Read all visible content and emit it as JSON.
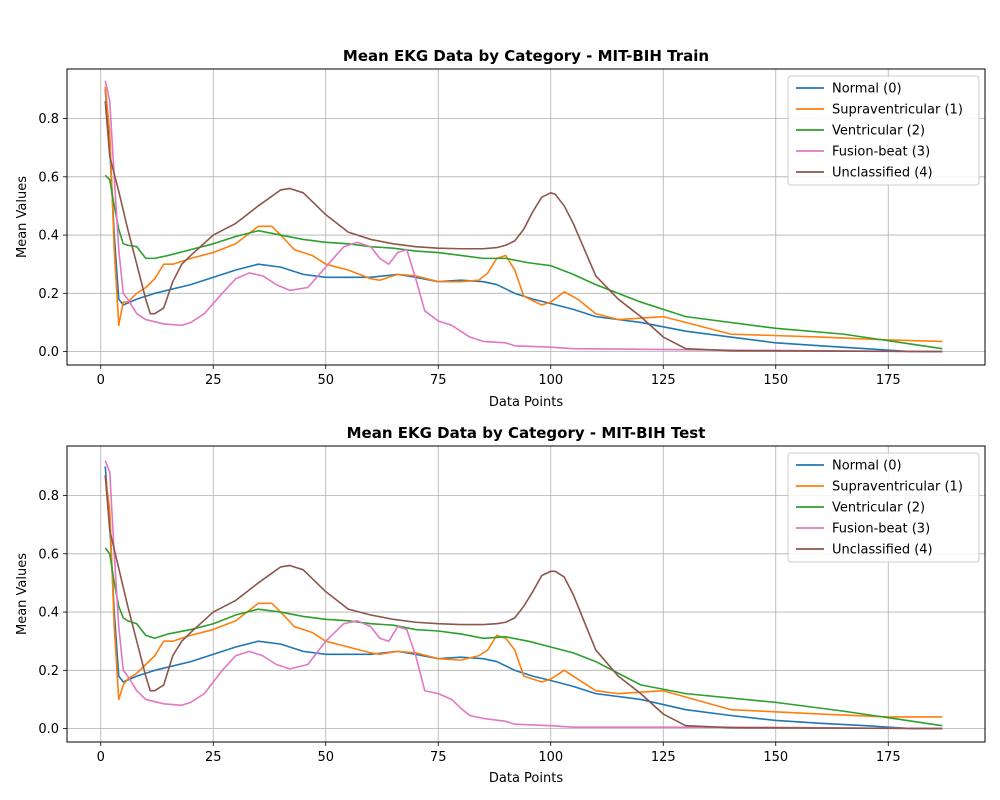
{
  "chart_data": [
    {
      "type": "line",
      "title": "Mean EKG Data by Category - MIT-BIH Train",
      "xlabel": "Data Points",
      "ylabel": "Mean Values",
      "xlim": [
        -7.5,
        196.5
      ],
      "ylim": [
        -0.046,
        0.97
      ],
      "xticks": [
        0,
        25,
        50,
        75,
        100,
        125,
        150,
        175
      ],
      "yticks": [
        0.0,
        0.2,
        0.4,
        0.6,
        0.8
      ],
      "grid": true,
      "legend": "top-right",
      "series": [
        {
          "name": "Normal (0)",
          "color": "#1f77b4",
          "x": [
            1,
            2,
            3,
            4,
            5,
            8,
            12,
            20,
            30,
            35,
            40,
            45,
            50,
            60,
            66,
            70,
            75,
            80,
            85,
            88,
            92,
            96,
            100,
            105,
            110,
            120,
            130,
            140,
            150,
            160,
            170,
            180,
            187
          ],
          "y": [
            0.9,
            0.7,
            0.4,
            0.18,
            0.16,
            0.18,
            0.2,
            0.23,
            0.28,
            0.3,
            0.29,
            0.265,
            0.255,
            0.255,
            0.265,
            0.255,
            0.24,
            0.245,
            0.24,
            0.23,
            0.2,
            0.18,
            0.165,
            0.145,
            0.12,
            0.1,
            0.07,
            0.05,
            0.03,
            0.02,
            0.01,
            0.0,
            0.0
          ]
        },
        {
          "name": "Supraventricular (1)",
          "color": "#ff7f0e",
          "x": [
            1,
            2,
            3,
            4,
            5,
            6,
            8,
            10,
            12,
            14,
            16,
            20,
            25,
            30,
            35,
            38,
            40,
            43,
            47,
            50,
            55,
            60,
            62,
            66,
            70,
            75,
            80,
            84,
            86,
            88,
            90,
            92,
            94,
            98,
            100,
            103,
            106,
            110,
            115,
            125,
            140,
            160,
            175,
            187
          ],
          "y": [
            0.91,
            0.75,
            0.35,
            0.09,
            0.17,
            0.17,
            0.2,
            0.22,
            0.25,
            0.3,
            0.3,
            0.32,
            0.34,
            0.37,
            0.43,
            0.43,
            0.4,
            0.35,
            0.33,
            0.3,
            0.28,
            0.25,
            0.245,
            0.265,
            0.26,
            0.24,
            0.24,
            0.245,
            0.27,
            0.32,
            0.33,
            0.28,
            0.19,
            0.16,
            0.17,
            0.205,
            0.18,
            0.13,
            0.11,
            0.12,
            0.06,
            0.05,
            0.04,
            0.035
          ]
        },
        {
          "name": "Ventricular (2)",
          "color": "#2ca02c",
          "x": [
            1,
            2,
            3,
            4,
            5,
            6,
            8,
            10,
            12,
            15,
            20,
            25,
            30,
            35,
            40,
            45,
            50,
            55,
            60,
            65,
            70,
            75,
            80,
            85,
            90,
            95,
            100,
            105,
            110,
            120,
            130,
            150,
            165,
            187
          ],
          "y": [
            0.605,
            0.59,
            0.5,
            0.42,
            0.37,
            0.365,
            0.36,
            0.32,
            0.32,
            0.33,
            0.35,
            0.37,
            0.395,
            0.415,
            0.4,
            0.385,
            0.375,
            0.37,
            0.36,
            0.355,
            0.345,
            0.34,
            0.33,
            0.32,
            0.32,
            0.305,
            0.295,
            0.265,
            0.23,
            0.17,
            0.12,
            0.08,
            0.06,
            0.01
          ]
        },
        {
          "name": "Fusion-beat (3)",
          "color": "#e377c2",
          "x": [
            1,
            2,
            3,
            4,
            5,
            6,
            8,
            10,
            14,
            18,
            20,
            23,
            27,
            30,
            33,
            36,
            39,
            42,
            46,
            50,
            54,
            57,
            60,
            62,
            64,
            66,
            68,
            70,
            72,
            75,
            78,
            80,
            82,
            85,
            90,
            92,
            100,
            105,
            120,
            140,
            187
          ],
          "y": [
            0.93,
            0.86,
            0.6,
            0.35,
            0.2,
            0.18,
            0.13,
            0.11,
            0.095,
            0.09,
            0.1,
            0.13,
            0.2,
            0.25,
            0.27,
            0.26,
            0.23,
            0.21,
            0.22,
            0.29,
            0.36,
            0.375,
            0.36,
            0.32,
            0.3,
            0.34,
            0.35,
            0.25,
            0.14,
            0.105,
            0.09,
            0.07,
            0.05,
            0.035,
            0.03,
            0.02,
            0.015,
            0.01,
            0.008,
            0.005,
            0.0
          ]
        },
        {
          "name": "Unclassified (4)",
          "color": "#8c564b",
          "x": [
            1,
            2,
            4,
            6,
            8,
            10,
            11,
            12,
            14,
            16,
            18,
            20,
            25,
            30,
            35,
            40,
            42,
            45,
            50,
            55,
            60,
            65,
            70,
            75,
            80,
            85,
            88,
            90,
            92,
            94,
            96,
            98,
            100,
            101,
            103,
            105,
            110,
            115,
            120,
            125,
            130,
            140,
            187
          ],
          "y": [
            0.86,
            0.67,
            0.55,
            0.42,
            0.3,
            0.18,
            0.13,
            0.13,
            0.15,
            0.24,
            0.3,
            0.33,
            0.4,
            0.44,
            0.5,
            0.555,
            0.56,
            0.545,
            0.47,
            0.41,
            0.385,
            0.37,
            0.36,
            0.355,
            0.353,
            0.353,
            0.357,
            0.365,
            0.38,
            0.42,
            0.48,
            0.53,
            0.545,
            0.54,
            0.5,
            0.44,
            0.26,
            0.18,
            0.12,
            0.05,
            0.01,
            0.003,
            0.0
          ]
        }
      ]
    },
    {
      "type": "line",
      "title": "Mean EKG Data by Category - MIT-BIH Test",
      "xlabel": "Data Points",
      "ylabel": "Mean Values",
      "xlim": [
        -7.5,
        196.5
      ],
      "ylim": [
        -0.046,
        0.97
      ],
      "xticks": [
        0,
        25,
        50,
        75,
        100,
        125,
        150,
        175
      ],
      "yticks": [
        0.0,
        0.2,
        0.4,
        0.6,
        0.8
      ],
      "grid": true,
      "legend": "top-right",
      "series": [
        {
          "name": "Normal (0)",
          "color": "#1f77b4",
          "x": [
            1,
            2,
            3,
            4,
            5,
            8,
            12,
            20,
            30,
            35,
            40,
            45,
            50,
            60,
            66,
            70,
            75,
            80,
            85,
            88,
            92,
            96,
            100,
            105,
            110,
            120,
            130,
            140,
            150,
            160,
            170,
            180,
            187
          ],
          "y": [
            0.9,
            0.7,
            0.4,
            0.18,
            0.16,
            0.18,
            0.2,
            0.23,
            0.28,
            0.3,
            0.29,
            0.265,
            0.255,
            0.255,
            0.265,
            0.255,
            0.24,
            0.245,
            0.24,
            0.23,
            0.2,
            0.18,
            0.165,
            0.145,
            0.12,
            0.1,
            0.065,
            0.045,
            0.028,
            0.018,
            0.01,
            0.0,
            0.0
          ]
        },
        {
          "name": "Supraventricular (1)",
          "color": "#ff7f0e",
          "x": [
            1,
            2,
            3,
            4,
            5,
            6,
            8,
            10,
            12,
            14,
            16,
            20,
            25,
            30,
            35,
            38,
            40,
            43,
            47,
            50,
            55,
            60,
            62,
            66,
            70,
            75,
            80,
            84,
            86,
            88,
            90,
            92,
            94,
            98,
            100,
            103,
            106,
            110,
            115,
            125,
            140,
            160,
            175,
            187
          ],
          "y": [
            0.87,
            0.75,
            0.35,
            0.1,
            0.15,
            0.17,
            0.19,
            0.22,
            0.25,
            0.3,
            0.3,
            0.32,
            0.34,
            0.37,
            0.43,
            0.43,
            0.4,
            0.35,
            0.33,
            0.3,
            0.28,
            0.26,
            0.255,
            0.265,
            0.26,
            0.24,
            0.235,
            0.25,
            0.27,
            0.32,
            0.31,
            0.27,
            0.18,
            0.16,
            0.17,
            0.2,
            0.17,
            0.13,
            0.12,
            0.13,
            0.065,
            0.05,
            0.04,
            0.04
          ]
        },
        {
          "name": "Ventricular (2)",
          "color": "#2ca02c",
          "x": [
            1,
            2,
            3,
            4,
            5,
            6,
            8,
            10,
            12,
            15,
            20,
            25,
            30,
            35,
            40,
            45,
            50,
            55,
            60,
            65,
            70,
            75,
            80,
            85,
            90,
            95,
            100,
            105,
            110,
            120,
            130,
            150,
            165,
            187
          ],
          "y": [
            0.62,
            0.6,
            0.5,
            0.42,
            0.38,
            0.37,
            0.36,
            0.32,
            0.31,
            0.325,
            0.34,
            0.36,
            0.39,
            0.41,
            0.4,
            0.385,
            0.375,
            0.37,
            0.36,
            0.355,
            0.34,
            0.335,
            0.325,
            0.31,
            0.315,
            0.3,
            0.28,
            0.26,
            0.23,
            0.15,
            0.12,
            0.09,
            0.06,
            0.01
          ]
        },
        {
          "name": "Fusion-beat (3)",
          "color": "#e377c2",
          "x": [
            1,
            2,
            3,
            4,
            5,
            6,
            8,
            10,
            14,
            18,
            20,
            23,
            27,
            30,
            33,
            36,
            39,
            42,
            46,
            50,
            54,
            57,
            60,
            62,
            64,
            66,
            68,
            70,
            72,
            75,
            78,
            80,
            82,
            85,
            90,
            92,
            100,
            105,
            120,
            140,
            187
          ],
          "y": [
            0.92,
            0.88,
            0.6,
            0.35,
            0.2,
            0.18,
            0.13,
            0.1,
            0.085,
            0.08,
            0.09,
            0.12,
            0.2,
            0.25,
            0.265,
            0.25,
            0.22,
            0.205,
            0.22,
            0.3,
            0.36,
            0.37,
            0.35,
            0.31,
            0.3,
            0.35,
            0.34,
            0.25,
            0.13,
            0.12,
            0.1,
            0.07,
            0.045,
            0.035,
            0.025,
            0.015,
            0.01,
            0.005,
            0.005,
            0.005,
            0.0
          ]
        },
        {
          "name": "Unclassified (4)",
          "color": "#8c564b",
          "x": [
            1,
            2,
            4,
            6,
            8,
            10,
            11,
            12,
            14,
            16,
            18,
            20,
            25,
            30,
            35,
            40,
            42,
            45,
            50,
            55,
            60,
            65,
            70,
            75,
            80,
            85,
            88,
            90,
            92,
            94,
            96,
            98,
            100,
            101,
            103,
            105,
            110,
            115,
            120,
            125,
            130,
            140,
            187
          ],
          "y": [
            0.87,
            0.68,
            0.55,
            0.42,
            0.3,
            0.18,
            0.13,
            0.13,
            0.15,
            0.25,
            0.3,
            0.33,
            0.4,
            0.44,
            0.5,
            0.555,
            0.56,
            0.545,
            0.47,
            0.41,
            0.39,
            0.375,
            0.365,
            0.36,
            0.357,
            0.357,
            0.36,
            0.365,
            0.38,
            0.42,
            0.47,
            0.525,
            0.54,
            0.54,
            0.52,
            0.46,
            0.27,
            0.18,
            0.12,
            0.05,
            0.01,
            0.003,
            0.0
          ]
        }
      ]
    }
  ]
}
